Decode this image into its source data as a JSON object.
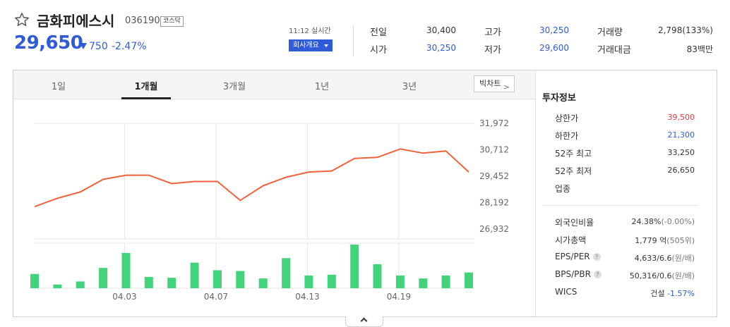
{
  "header": {
    "stock_name": "금화피에스시",
    "stock_code": "036190",
    "market": "코스닥",
    "price": "29,650",
    "change": "750",
    "change_rate": "-2.47%",
    "realtime": "11:12 실시간",
    "company_button": "회사개요"
  },
  "stats": [
    {
      "label": "전일",
      "value": "30,400",
      "color": "#333333"
    },
    {
      "label": "시가",
      "value": "30,250",
      "color": "#2f5bd8"
    },
    {
      "label": "고가",
      "value": "30,250",
      "color": "#2f5bd8"
    },
    {
      "label": "저가",
      "value": "29,600",
      "color": "#2f5bd8"
    },
    {
      "label": "거래량",
      "value": "2,798(133%)",
      "color": "#333333"
    },
    {
      "label": "거래대금",
      "value": "83백만",
      "color": "#333333"
    }
  ],
  "tabs": [
    "1일",
    "1개월",
    "3개월",
    "1년",
    "3년"
  ],
  "active_tab": "1개월",
  "big_chart_button": "빅차트",
  "chart_data": {
    "type": "line",
    "price_series": [
      28000,
      28400,
      28700,
      29300,
      29500,
      29500,
      29100,
      29200,
      29200,
      28300,
      29000,
      29400,
      29650,
      29700,
      30300,
      30350,
      30750,
      30550,
      30650,
      29650
    ],
    "volume_series": [
      1.9,
      0.5,
      0.9,
      2.7,
      4.7,
      1.5,
      1.4,
      3.4,
      2.4,
      2.3,
      1.3,
      4.0,
      1.7,
      1.8,
      5.8,
      3.2,
      1.7,
      1.3,
      1.7,
      2.1
    ],
    "y_ticks": [
      "31,972",
      "30,712",
      "29,452",
      "28,192",
      "26,932"
    ],
    "ylim": [
      26932,
      31972
    ],
    "x_ticks": [
      "04.03",
      "04.07",
      "04.13",
      "04.19"
    ],
    "line_color": "#f2623a",
    "bar_color": "#43d37a"
  },
  "investment": {
    "title": "투자정보",
    "rows": [
      {
        "label": "상한가",
        "value": "39,500",
        "color": "#e03a3a"
      },
      {
        "label": "하한가",
        "value": "21,300",
        "color": "#2f5bd8"
      },
      {
        "label": "52주 최고",
        "value": "33,250",
        "color": "#333333"
      },
      {
        "label": "52주 최저",
        "value": "26,650",
        "color": "#333333"
      },
      {
        "label": "업종",
        "value": "",
        "color": "#333333"
      }
    ],
    "rows2": [
      {
        "label": "외국인비율",
        "value": "24.38%",
        "sub": "(-0.00%)",
        "help": false
      },
      {
        "label": "시가총액",
        "value": "1,779 억",
        "sub": "(505위)",
        "help": false
      },
      {
        "label": "EPS/PER",
        "value": "4,633/6.6",
        "sub": "(원/배)",
        "help": true
      },
      {
        "label": "BPS/PBR",
        "value": "50,316/0.6",
        "sub": "(원/배)",
        "help": true
      }
    ],
    "wics": {
      "label": "WICS",
      "sector": "건설",
      "rate": "-1.57%"
    }
  }
}
